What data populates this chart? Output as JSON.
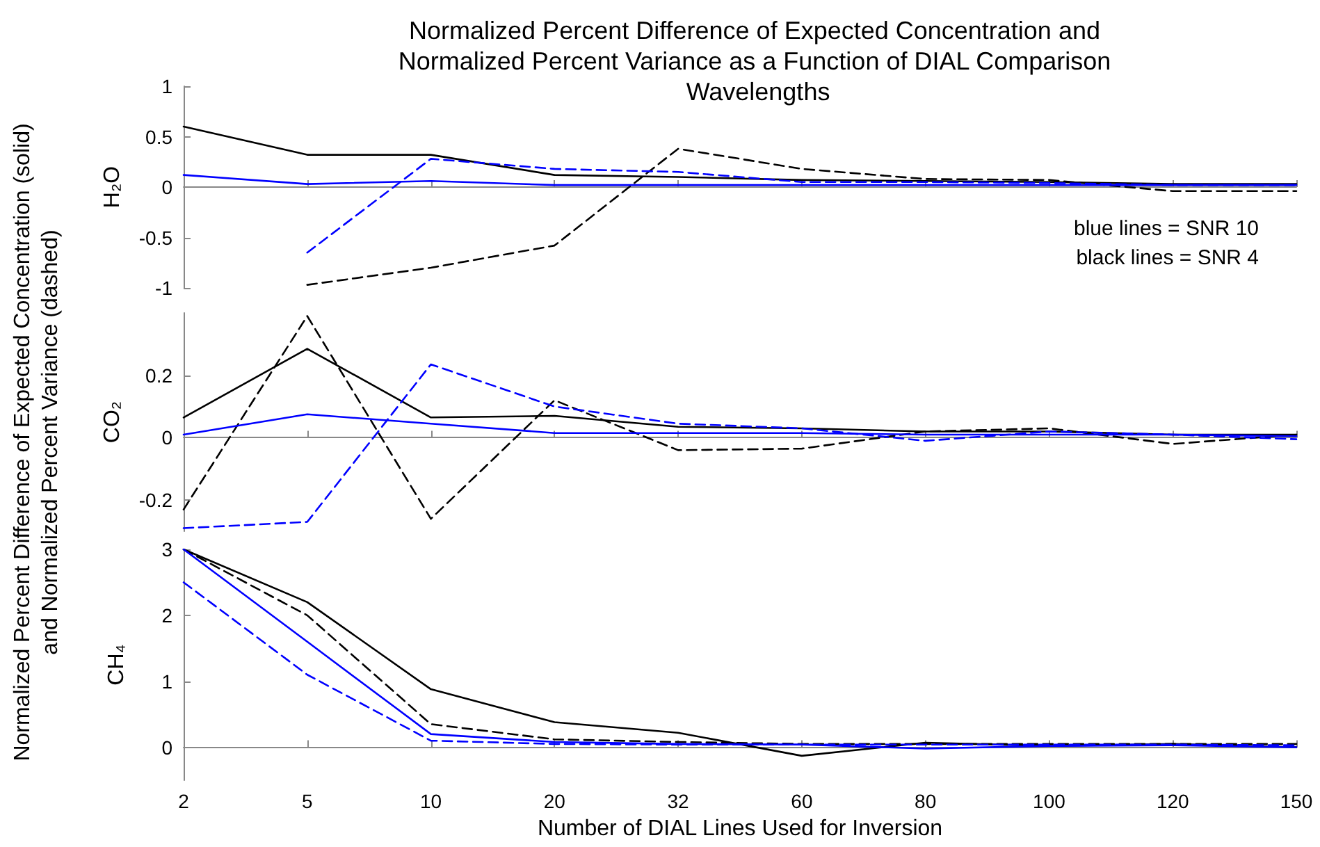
{
  "chart_data": [
    {
      "type": "line",
      "title": "Normalized Percent Difference of Expected Concentration and Normalized Percent Variance as a Function of DIAL Comparison Wavelengths",
      "ylabel": "H₂O",
      "categories": [
        "2",
        "5",
        "10",
        "20",
        "32",
        "60",
        "80",
        "100",
        "120",
        "150"
      ],
      "ylim": [
        -1,
        1
      ],
      "yticks": [
        -1,
        -0.5,
        0,
        0.5,
        1
      ],
      "tick_labels": "y",
      "marker": "none",
      "annotations": [
        "blue lines = SNR 10",
        "black lines = SNR 4"
      ],
      "series": [
        {
          "color": "#000000",
          "line_style": "solid",
          "values": [
            0.6,
            0.32,
            0.32,
            0.12,
            0.1,
            0.07,
            0.06,
            0.05,
            0.03,
            0.03
          ]
        },
        {
          "color": "#000000",
          "line_style": "dashed",
          "values": [
            null,
            -0.97,
            -0.8,
            -0.58,
            0.38,
            0.18,
            0.08,
            0.07,
            -0.04,
            -0.04
          ]
        },
        {
          "color": "#0000ff",
          "line_style": "solid",
          "values": [
            0.12,
            0.03,
            0.06,
            0.02,
            0.02,
            0.02,
            0.02,
            0.02,
            0.02,
            0.02
          ]
        },
        {
          "color": "#0000ff",
          "line_style": "dashed",
          "values": [
            null,
            -0.65,
            0.28,
            0.18,
            0.15,
            0.05,
            0.05,
            0.04,
            0.02,
            0.02
          ]
        }
      ]
    },
    {
      "type": "line",
      "ylabel": "CO₂",
      "categories": [
        "2",
        "5",
        "10",
        "20",
        "32",
        "60",
        "80",
        "100",
        "120",
        "150"
      ],
      "ylim": [
        -0.3,
        0.4
      ],
      "yticks": [
        -0.2,
        0,
        0.2
      ],
      "tick_labels": "y",
      "marker": "none",
      "annotations": [
        "Normalized Percent Difference of Expected Concentration (solid)",
        "and Normalized Percent Variance (dashed)"
      ],
      "series": [
        {
          "color": "#000000",
          "line_style": "solid",
          "values": [
            0.065,
            0.285,
            0.065,
            0.07,
            0.035,
            0.03,
            0.02,
            0.02,
            0.01,
            0.01
          ]
        },
        {
          "color": "#000000",
          "line_style": "dashed",
          "values": [
            -0.23,
            0.39,
            -0.26,
            0.12,
            -0.04,
            -0.035,
            0.02,
            0.03,
            -0.02,
            0.01
          ]
        },
        {
          "color": "#0000ff",
          "line_style": "solid",
          "values": [
            0.01,
            0.075,
            0.045,
            0.015,
            0.015,
            0.015,
            0.01,
            0.01,
            0.01,
            0.005
          ]
        },
        {
          "color": "#0000ff",
          "line_style": "dashed",
          "values": [
            -0.29,
            -0.27,
            0.235,
            0.1,
            0.045,
            0.03,
            -0.01,
            0.02,
            0.01,
            -0.005
          ]
        }
      ]
    },
    {
      "type": "line",
      "ylabel": "CH₄",
      "xlabel": "Number of DIAL Lines Used for Inversion",
      "categories": [
        "2",
        "5",
        "10",
        "20",
        "32",
        "60",
        "80",
        "100",
        "120",
        "150"
      ],
      "ylim": [
        -0.5,
        3
      ],
      "yticks": [
        0,
        1,
        2,
        3
      ],
      "marker": "none",
      "series": [
        {
          "color": "#000000",
          "line_style": "solid",
          "values": [
            3,
            2.2,
            0.88,
            0.38,
            0.22,
            -0.13,
            0.07,
            0.02,
            0.05,
            0
          ]
        },
        {
          "color": "#000000",
          "line_style": "dashed",
          "values": [
            3,
            2.0,
            0.35,
            0.12,
            0.08,
            0.05,
            0.05,
            0.05,
            0.05,
            0.05
          ]
        },
        {
          "color": "#0000ff",
          "line_style": "solid",
          "values": [
            3,
            1.6,
            0.2,
            0.08,
            0.05,
            0.04,
            -0.02,
            0.02,
            0.03,
            0
          ]
        },
        {
          "color": "#0000ff",
          "line_style": "dashed",
          "values": [
            2.5,
            1.1,
            0.1,
            0.05,
            0.04,
            0.04,
            0.04,
            0.04,
            0.04,
            0.03
          ]
        }
      ]
    }
  ]
}
